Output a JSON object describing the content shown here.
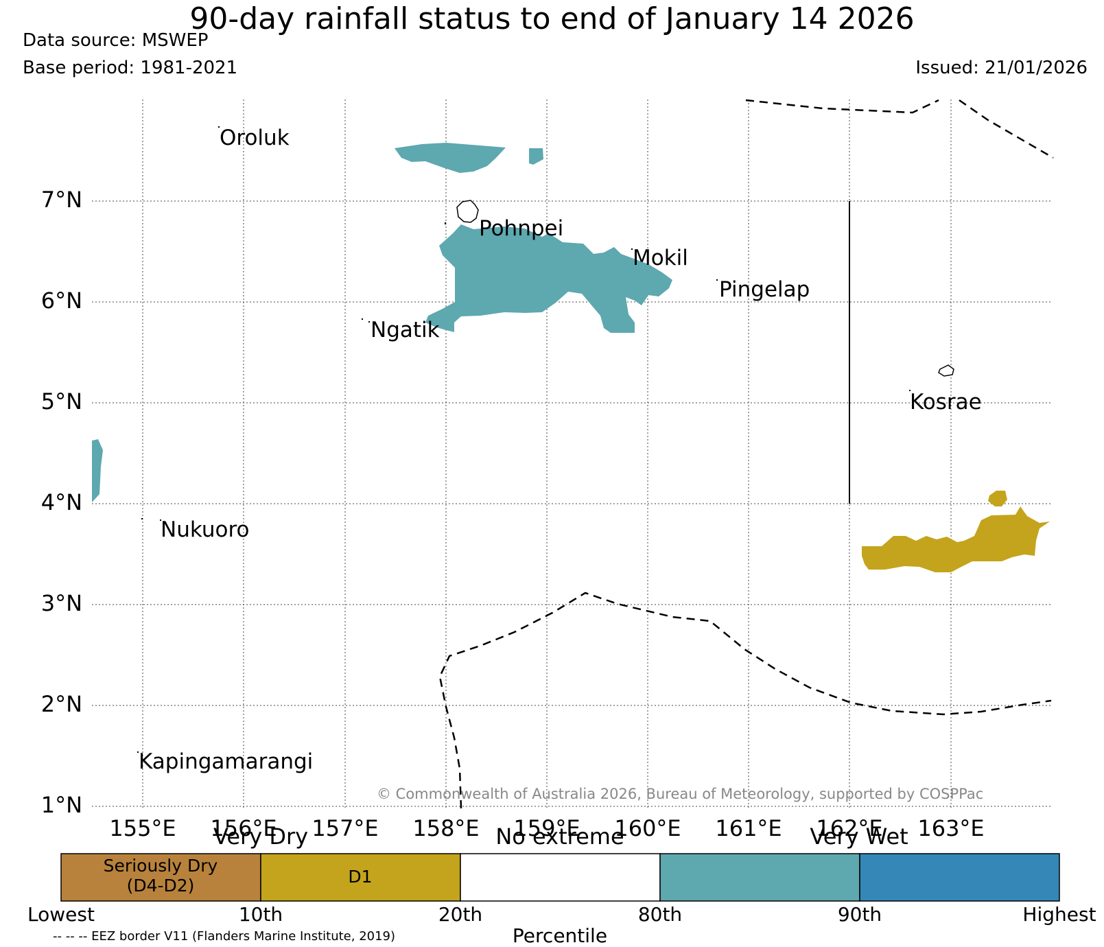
{
  "header": {
    "title": "90-day rainfall status to end of January 14 2026",
    "data_source": "Data source: MSWEP",
    "base_period": "Base period: 1981-2021",
    "issued": "Issued: 21/01/2026"
  },
  "map": {
    "lat_labels": [
      "7°N",
      "6°N",
      "5°N",
      "4°N",
      "3°N",
      "2°N",
      "1°N"
    ],
    "lon_labels": [
      "155°E",
      "156°E",
      "157°E",
      "158°E",
      "159°E",
      "160°E",
      "161°E",
      "162°E",
      "163°E"
    ],
    "places": {
      "oroluk": "Oroluk",
      "pohnpei": "Pohnpei",
      "mokil": "Mokil",
      "pingelap": "Pingelap",
      "ngatik": "Ngatik",
      "kosrae": "Kosrae",
      "nukuoro": "Nukuoro",
      "kapingamarangi": "Kapingamarangi"
    },
    "copyright": "© Commonwealth of Australia 2026, Bureau of Meteorology, supported by COSPPac"
  },
  "legend": {
    "categories": [
      "Very Dry",
      "No extreme",
      "Very Wet"
    ],
    "boxes": [
      {
        "line1": "Seriously Dry",
        "line2": "(D4-D2)",
        "color": "#b8823c"
      },
      {
        "line1": "D1",
        "color": "#c4a41c"
      },
      {
        "line1": "",
        "color": "#ffffff"
      },
      {
        "line1": "",
        "color": "#5ea8b0"
      },
      {
        "line1": "",
        "color": "#3587b7"
      }
    ],
    "ticks": [
      "Lowest",
      "10th",
      "20th",
      "80th",
      "90th",
      "Highest"
    ],
    "axis_label": "Percentile",
    "eez_note": "-- -- -- EEZ border V11 (Flanders Marine Institute, 2019)"
  },
  "colors": {
    "very_wet": "#5ea8b0",
    "d1": "#c4a41c",
    "seriously_dry": "#b8823c",
    "highest": "#3587b7"
  }
}
